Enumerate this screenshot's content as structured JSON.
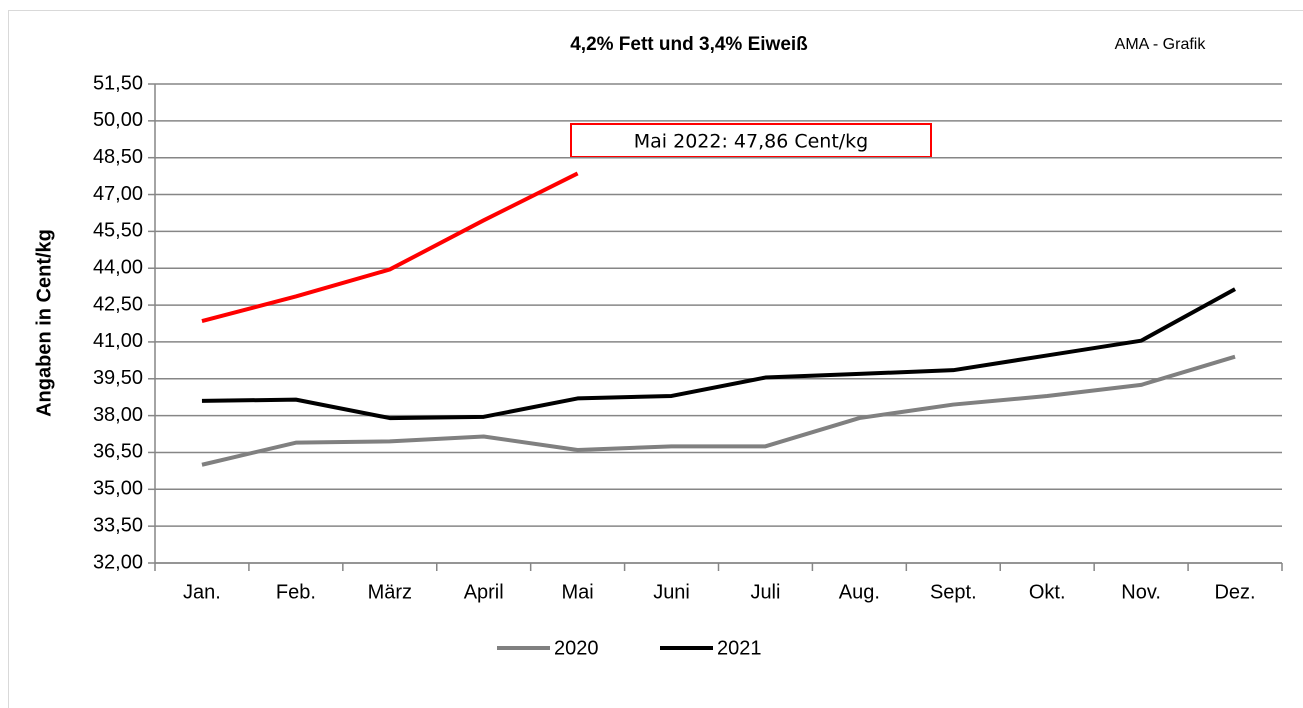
{
  "chart_data": {
    "type": "line",
    "title": "4,2% Fett und 3,4% Eiweiß",
    "source": "AMA - Grafik",
    "y_label": "Angaben in Cent/kg",
    "annotation": "Mai 2022: 47,86 Cent/kg",
    "categories": [
      "Jan.",
      "Feb.",
      "März",
      "April",
      "Mai",
      "Juni",
      "Juli",
      "Aug.",
      "Sept.",
      "Okt.",
      "Nov.",
      "Dez."
    ],
    "series": [
      {
        "name": "2020",
        "color": "#808080",
        "values": [
          36.0,
          36.9,
          36.95,
          37.15,
          36.6,
          36.75,
          36.75,
          37.9,
          38.45,
          38.8,
          39.25,
          40.4
        ]
      },
      {
        "name": "2021",
        "color": "#000000",
        "values": [
          38.6,
          38.65,
          37.9,
          37.95,
          38.7,
          38.8,
          39.55,
          39.7,
          39.85,
          40.45,
          41.05,
          43.15
        ]
      },
      {
        "color": "#ff0000",
        "values": [
          41.85,
          42.85,
          43.95,
          45.95,
          47.86,
          null,
          null,
          null,
          null,
          null,
          null,
          null
        ]
      }
    ],
    "ylim": [
      32,
      51.5
    ],
    "yticks": [
      {
        "value": 32,
        "label": "32,00"
      },
      {
        "value": 33.5,
        "label": "33,50"
      },
      {
        "value": 35,
        "label": "35,00"
      },
      {
        "value": 36.5,
        "label": "36,50"
      },
      {
        "value": 38,
        "label": "38,00"
      },
      {
        "value": 39.5,
        "label": "39,50"
      },
      {
        "value": 41,
        "label": "41,00"
      },
      {
        "value": 42.5,
        "label": "42,50"
      },
      {
        "value": 44,
        "label": "44,00"
      },
      {
        "value": 45.5,
        "label": "45,50"
      },
      {
        "value": 47,
        "label": "47,00"
      },
      {
        "value": 48.5,
        "label": "48,50"
      },
      {
        "value": 50,
        "label": "50,00"
      },
      {
        "value": 51.5,
        "label": "51,50"
      }
    ],
    "grid": true
  }
}
